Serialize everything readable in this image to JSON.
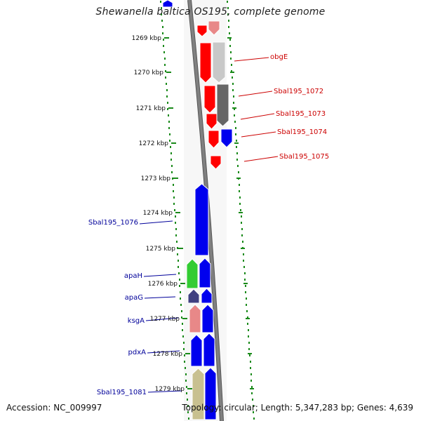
{
  "title": "Shewanella baltica OS195, complete genome",
  "footer": {
    "accession": "Accession: NC_009997",
    "topology": "Topology: circular; Length: 5,347,283 bp; Genes: 4,639"
  },
  "colors": {
    "backbone": "#808080",
    "scale_dots": "#1a8a1a",
    "forward_label": "#cc0000",
    "reverse_label": "#00009a",
    "red": "#ff0000",
    "pink": "#e88888",
    "light_gray": "#c8c8c8",
    "dark_gray": "#666666",
    "blue": "#0000ee",
    "green": "#33cc33",
    "navy": "#404080",
    "olive": "#c8c090"
  },
  "scale": [
    {
      "label": "1269 kbp"
    },
    {
      "label": "1270 kbp"
    },
    {
      "label": "1271 kbp"
    },
    {
      "label": "1272 kbp"
    },
    {
      "label": "1273 kbp"
    },
    {
      "label": "1274 kbp"
    },
    {
      "label": "1275 kbp"
    },
    {
      "label": "1276 kbp"
    },
    {
      "label": "1277 kbp"
    },
    {
      "label": "1278 kbp"
    },
    {
      "label": "1279 kbp"
    }
  ],
  "gene_labels": [
    {
      "name": "obgE",
      "side": "forward"
    },
    {
      "name": "Sbal195_1072",
      "side": "forward"
    },
    {
      "name": "Sbal195_1073",
      "side": "forward"
    },
    {
      "name": "Sbal195_1074",
      "side": "forward"
    },
    {
      "name": "Sbal195_1075",
      "side": "forward"
    },
    {
      "name": "Sbal195_1076",
      "side": "reverse"
    },
    {
      "name": "apaH",
      "side": "reverse"
    },
    {
      "name": "apaG",
      "side": "reverse"
    },
    {
      "name": "ksgA",
      "side": "reverse"
    },
    {
      "name": "pdxA",
      "side": "reverse"
    },
    {
      "name": "Sbal195_1081",
      "side": "reverse"
    }
  ]
}
